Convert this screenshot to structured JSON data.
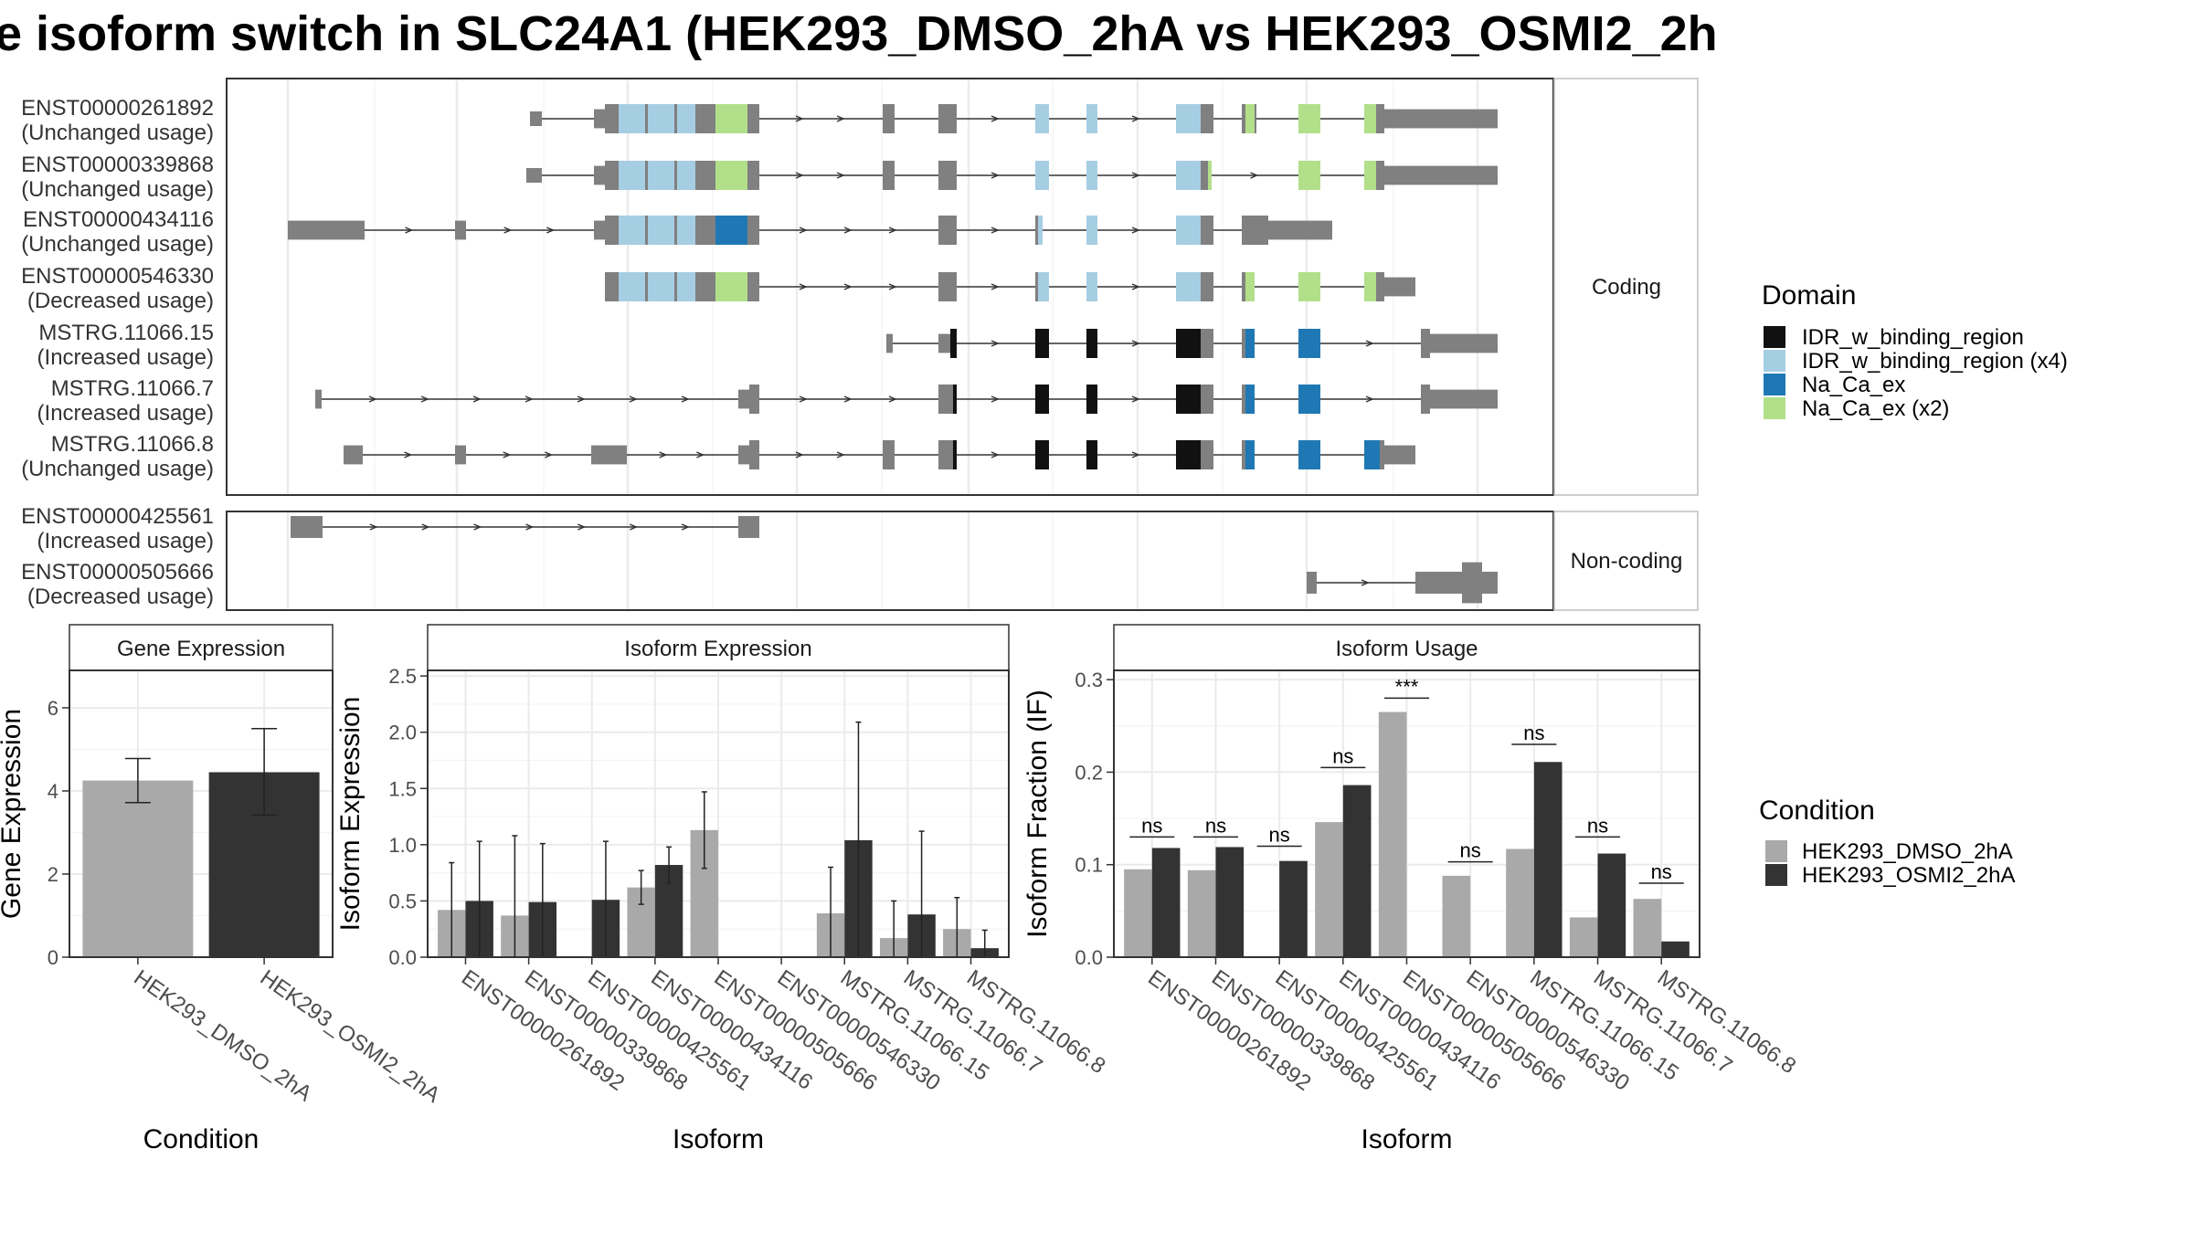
{
  "title": "e isoform switch in SLC24A1 (HEK293_DMSO_2hA vs HEK293_OSMI2_2h",
  "colors": {
    "exon": "#808080",
    "idr": "#111111",
    "idr_x4": "#a6cee3",
    "naca": "#1f78b4",
    "naca_x2": "#b2df8a",
    "dmso": "#a9a9a9",
    "osmi": "#333333",
    "grid": "#ebebeb",
    "panel_border": "#333333",
    "strip_border": "#bfbfbf"
  },
  "transcripts": {
    "coding_strip": "Coding",
    "noncoding_strip": "Non-coding",
    "rows": [
      {
        "id": "ENST00000261892",
        "usage": "(Unchanged usage)",
        "group": "coding"
      },
      {
        "id": "ENST00000339868",
        "usage": "(Unchanged usage)",
        "group": "coding"
      },
      {
        "id": "ENST00000434116",
        "usage": "(Unchanged usage)",
        "group": "coding"
      },
      {
        "id": "ENST00000546330",
        "usage": "(Decreased usage)",
        "group": "coding"
      },
      {
        "id": "MSTRG.11066.15",
        "usage": "(Increased usage)",
        "group": "coding"
      },
      {
        "id": "MSTRG.11066.7",
        "usage": "(Increased usage)",
        "group": "coding"
      },
      {
        "id": "MSTRG.11066.8",
        "usage": "(Unchanged usage)",
        "group": "coding"
      },
      {
        "id": "ENST00000425561",
        "usage": "(Increased usage)",
        "group": "noncoding"
      },
      {
        "id": "ENST00000505666",
        "usage": "(Decreased usage)",
        "group": "noncoding"
      }
    ]
  },
  "domain_legend": {
    "title": "Domain",
    "items": [
      {
        "label": "IDR_w_binding_region",
        "color": "#111111"
      },
      {
        "label": "IDR_w_binding_region (x4)",
        "color": "#a6cee3"
      },
      {
        "label": "Na_Ca_ex",
        "color": "#1f78b4"
      },
      {
        "label": "Na_Ca_ex (x2)",
        "color": "#b2df8a"
      }
    ]
  },
  "condition_legend": {
    "title": "Condition",
    "items": [
      {
        "label": "HEK293_DMSO_2hA",
        "color": "#a9a9a9"
      },
      {
        "label": "HEK293_OSMI2_2hA",
        "color": "#333333"
      }
    ]
  },
  "chart_data": [
    {
      "type": "bar",
      "title": "Gene Expression",
      "xlabel": "Condition",
      "ylabel": "Gene Expression",
      "ylim": [
        0,
        6.9
      ],
      "yticks": [
        0,
        2,
        4,
        6
      ],
      "categories": [
        "HEK293_DMSO_2hA",
        "HEK293_OSMI2_2hA"
      ],
      "values": [
        4.25,
        4.45
      ],
      "error_low": [
        3.72,
        3.42
      ],
      "error_high": [
        4.78,
        5.5
      ]
    },
    {
      "type": "bar",
      "title": "Isoform Expression",
      "xlabel": "Isoform",
      "ylabel": "Isoform Expression",
      "ylim": [
        0,
        2.55
      ],
      "yticks": [
        0.0,
        0.5,
        1.0,
        1.5,
        2.0,
        2.5
      ],
      "categories": [
        "ENST00000261892",
        "ENST00000339868",
        "ENST00000425561",
        "ENST00000434116",
        "ENST00000505666",
        "ENST00000546330",
        "MSTRG.11066.15",
        "MSTRG.11066.7",
        "MSTRG.11066.8"
      ],
      "series": [
        {
          "name": "HEK293_DMSO_2hA",
          "values": [
            0.42,
            0.37,
            0.0,
            0.62,
            1.13,
            0.0,
            0.39,
            0.17,
            0.25
          ],
          "error_high": [
            0.84,
            1.08,
            0.0,
            0.77,
            1.47,
            0.0,
            0.8,
            0.5,
            0.53
          ],
          "error_low": [
            0.0,
            0.0,
            0.0,
            0.47,
            0.79,
            0.0,
            0.0,
            0.0,
            0.0
          ]
        },
        {
          "name": "HEK293_OSMI2_2hA",
          "values": [
            0.5,
            0.49,
            0.51,
            0.82,
            0.0,
            0.0,
            1.04,
            0.38,
            0.08
          ],
          "error_high": [
            1.03,
            1.01,
            1.03,
            0.98,
            0.0,
            0.0,
            2.09,
            1.12,
            0.24
          ],
          "error_low": [
            0.0,
            0.0,
            0.0,
            0.66,
            0.0,
            0.0,
            0.0,
            0.0,
            0.0
          ]
        }
      ],
      "grouping_note_hidden": true
    },
    {
      "type": "bar",
      "title": "Isoform Usage",
      "xlabel": "Isoform",
      "ylabel": "Isoform Fraction (IF)",
      "ylim": [
        0,
        0.31
      ],
      "yticks": [
        0.0,
        0.1,
        0.2,
        0.3
      ],
      "categories": [
        "ENST00000261892",
        "ENST00000339868",
        "ENST00000425561",
        "ENST00000434116",
        "ENST00000505666",
        "ENST00000546330",
        "MSTRG.11066.15",
        "MSTRG.11066.7",
        "MSTRG.11066.8"
      ],
      "series": [
        {
          "name": "HEK293_DMSO_2hA",
          "values": [
            0.095,
            0.094,
            0.0,
            0.146,
            0.265,
            0.088,
            0.117,
            0.043,
            0.063
          ]
        },
        {
          "name": "HEK293_OSMI2_2hA",
          "values": [
            0.118,
            0.119,
            0.104,
            0.186,
            0.0,
            0.0,
            0.211,
            0.112,
            0.017
          ]
        }
      ],
      "significance": [
        "ns",
        "ns",
        "ns",
        "ns",
        "***",
        "ns",
        "ns",
        "ns",
        "ns"
      ],
      "significance_y": [
        0.13,
        0.13,
        0.12,
        0.205,
        0.28,
        0.103,
        0.23,
        0.13,
        0.08
      ]
    }
  ]
}
